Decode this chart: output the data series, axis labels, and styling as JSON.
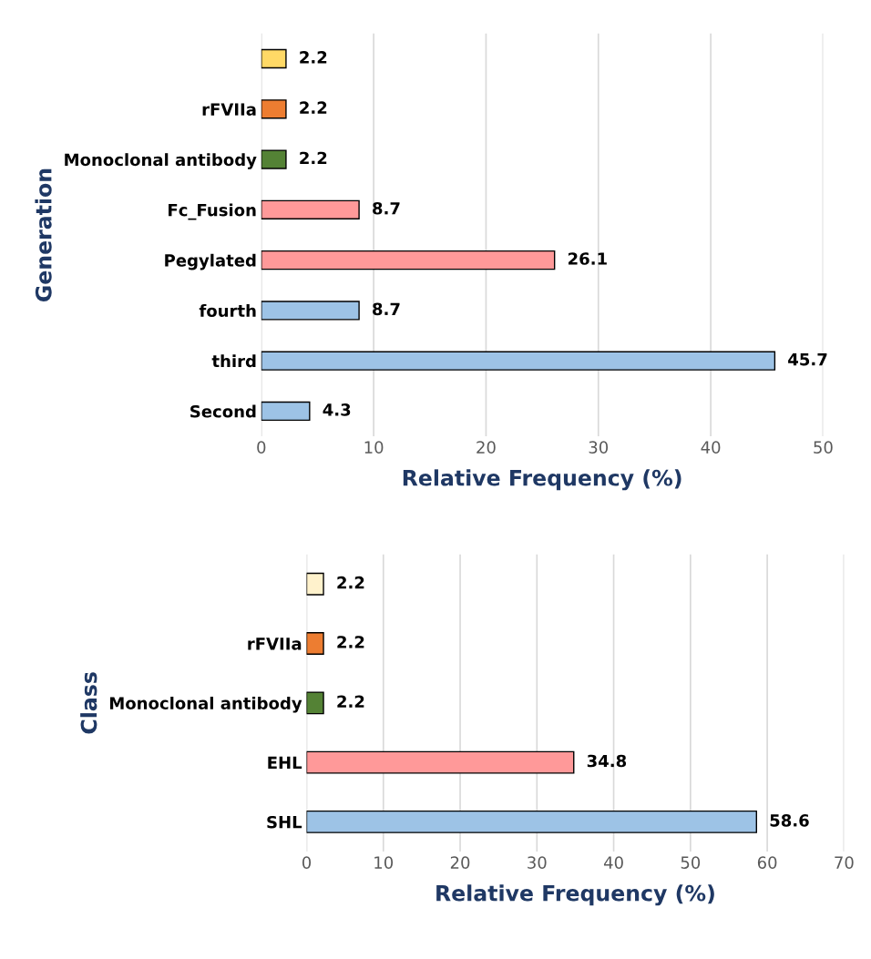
{
  "chart_data": [
    {
      "type": "bar",
      "orientation": "horizontal",
      "ylabel": "Generation",
      "xlabel": "Relative Frequency (%)",
      "categories": [
        null,
        "rFVIIa",
        "Monoclonal antibody",
        "Fc_Fusion",
        "Pegylated",
        "fourth",
        "third",
        "Second"
      ],
      "values": [
        2.2,
        2.2,
        2.2,
        8.7,
        26.1,
        8.7,
        45.7,
        4.3
      ],
      "colors": [
        "#ffd966",
        "#ed7d31",
        "#548235",
        "#ff9999",
        "#ff9999",
        "#9dc3e6",
        "#9dc3e6",
        "#9dc3e6"
      ],
      "xlim": [
        0,
        50
      ],
      "xticks": [
        0,
        10,
        20,
        30,
        40,
        50
      ],
      "grid": "x",
      "data_labels": true
    },
    {
      "type": "bar",
      "orientation": "horizontal",
      "ylabel": "Class",
      "xlabel": "Relative Frequency (%)",
      "categories": [
        null,
        "rFVIIa",
        "Monoclonal antibody",
        "EHL",
        "SHL"
      ],
      "values": [
        2.2,
        2.2,
        2.2,
        34.8,
        58.6
      ],
      "colors": [
        "#fff2cc",
        "#ed7d31",
        "#548235",
        "#ff9999",
        "#9dc3e6"
      ],
      "xlim": [
        0,
        70
      ],
      "xticks": [
        0,
        10,
        20,
        30,
        40,
        50,
        60,
        70
      ],
      "grid": "x",
      "data_labels": true
    }
  ]
}
